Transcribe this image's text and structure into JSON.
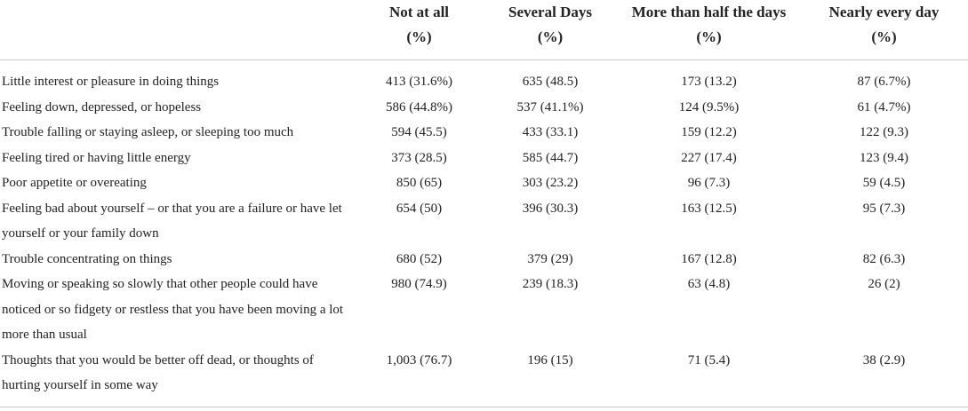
{
  "header": {
    "blank": "",
    "col1_line1": "Not at all",
    "col1_line2": "(%)",
    "col2_line1": "Several Days",
    "col2_line2": "(%)",
    "col3_line1": "More than half the days",
    "col3_line2": "(%)",
    "col4_line1": "Nearly every day",
    "col4_line2": "(%)"
  },
  "rows": [
    {
      "label": "Little interest or pleasure in doing things",
      "v1": "413 (31.6%)",
      "v2": "635 (48.5)",
      "v3": "173 (13.2)",
      "v4": "87 (6.7%)"
    },
    {
      "label": "Feeling down, depressed, or hopeless",
      "v1": "586 (44.8%)",
      "v2": "537 (41.1%)",
      "v3": "124 (9.5%)",
      "v4": "61 (4.7%)"
    },
    {
      "label": "Trouble falling or staying asleep, or sleeping too much",
      "v1": "594 (45.5)",
      "v2": "433 (33.1)",
      "v3": "159 (12.2)",
      "v4": "122 (9.3)"
    },
    {
      "label": "Feeling tired or having little energy",
      "v1": "373 (28.5)",
      "v2": "585 (44.7)",
      "v3": "227 (17.4)",
      "v4": "123 (9.4)"
    },
    {
      "label": "Poor appetite or overeating",
      "v1": "850 (65)",
      "v2": "303 (23.2)",
      "v3": "96 (7.3)",
      "v4": "59 (4.5)"
    },
    {
      "label": "Feeling bad about yourself – or that you are a failure or have let yourself or your family down",
      "v1": "654 (50)",
      "v2": "396 (30.3)",
      "v3": "163 (12.5)",
      "v4": "95 (7.3)"
    },
    {
      "label": "Trouble concentrating on things",
      "v1": "680 (52)",
      "v2": "379 (29)",
      "v3": "167 (12.8)",
      "v4": "82 (6.3)"
    },
    {
      "label": "Moving or speaking so slowly that other people could have noticed or so fidgety or restless that you have been moving a lot more than usual",
      "v1": "980 (74.9)",
      "v2": "239 (18.3)",
      "v3": "63 (4.8)",
      "v4": "26 (2)"
    },
    {
      "label": "Thoughts that you would be better off dead, or thoughts of hurting yourself in some way",
      "v1": "1,003 (76.7)",
      "v2": "196 (15)",
      "v3": "71 (5.4)",
      "v4": "38 (2.9)"
    }
  ]
}
